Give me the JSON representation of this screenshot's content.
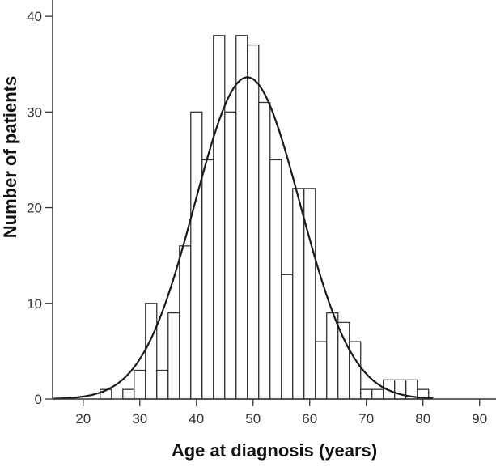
{
  "chart_data": {
    "type": "bar",
    "title": "",
    "xlabel": "Age at diagnosis (years)",
    "ylabel": "Number of patients",
    "bin_width": 2,
    "bin_starts": [
      23,
      25,
      27,
      29,
      31,
      33,
      35,
      37,
      39,
      41,
      43,
      45,
      47,
      49,
      51,
      53,
      55,
      57,
      59,
      61,
      63,
      65,
      67,
      69,
      71,
      73,
      75,
      77,
      79
    ],
    "values": [
      1,
      0,
      1,
      3,
      10,
      3,
      9,
      16,
      30,
      25,
      38,
      30,
      38,
      37,
      31,
      25,
      13,
      22,
      22,
      6,
      9,
      8,
      6,
      1,
      1,
      2,
      2,
      2,
      1
    ],
    "normal_curve": {
      "mean": 49,
      "sd": 9.3,
      "n": 392
    },
    "xlim": [
      14.6,
      92.9
    ],
    "ylim": [
      0,
      41.7
    ],
    "xticks": [
      "20",
      "30",
      "40",
      "50",
      "60",
      "70",
      "80",
      "90"
    ],
    "yticks": [
      "0",
      "10",
      "20",
      "30",
      "40"
    ],
    "grid": false,
    "colors": {
      "bar_fill": "#ffffff",
      "bar_stroke": "#333333",
      "curve": "#1a1a1a"
    }
  }
}
